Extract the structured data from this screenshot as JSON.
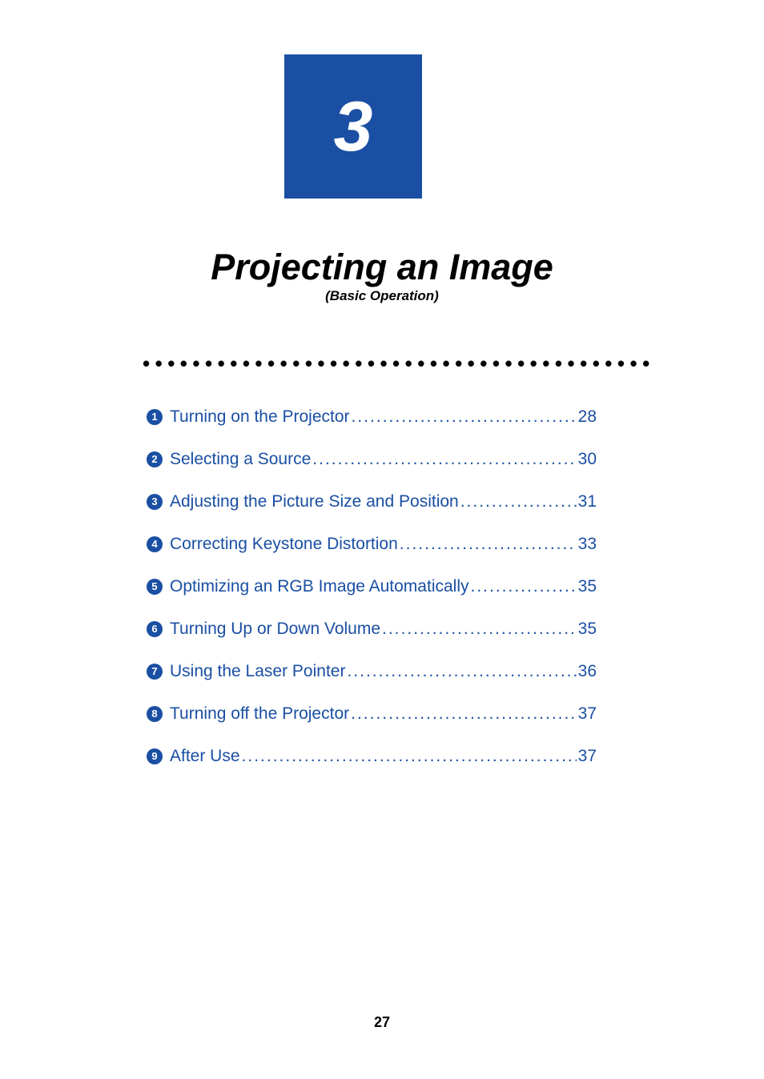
{
  "chapter": {
    "number": "3",
    "title": "Projecting an Image",
    "subtitle": "(Basic Operation)"
  },
  "colors": {
    "primary": "#1a4fa3",
    "background": "#ffffff",
    "text": "#000000"
  },
  "typography": {
    "chapter_number_fontsize": 88,
    "chapter_title_fontsize": 45,
    "chapter_subtitle_fontsize": 17,
    "toc_fontsize": 21,
    "bullet_fontsize": 13,
    "page_number_fontsize": 18
  },
  "toc": {
    "items": [
      {
        "num": "1",
        "title": "Turning on the Projector",
        "page": "28"
      },
      {
        "num": "2",
        "title": "Selecting a Source",
        "page": "30"
      },
      {
        "num": "3",
        "title": "Adjusting the Picture Size and Position",
        "page": "31"
      },
      {
        "num": "4",
        "title": "Correcting Keystone Distortion",
        "page": "33"
      },
      {
        "num": "5",
        "title": "Optimizing an RGB Image Automatically",
        "page": "35"
      },
      {
        "num": "6",
        "title": "Turning Up or Down Volume",
        "page": "35"
      },
      {
        "num": "7",
        "title": "Using the Laser Pointer",
        "page": "36"
      },
      {
        "num": "8",
        "title": "Turning off the Projector",
        "page": "37"
      },
      {
        "num": "9",
        "title": "After Use",
        "page": "37"
      }
    ]
  },
  "footer": {
    "page_number": "27"
  },
  "separator_dots": "•••••••••••••••••••••••••••••••••••••••••",
  "leader_dots": ".................................................................................."
}
